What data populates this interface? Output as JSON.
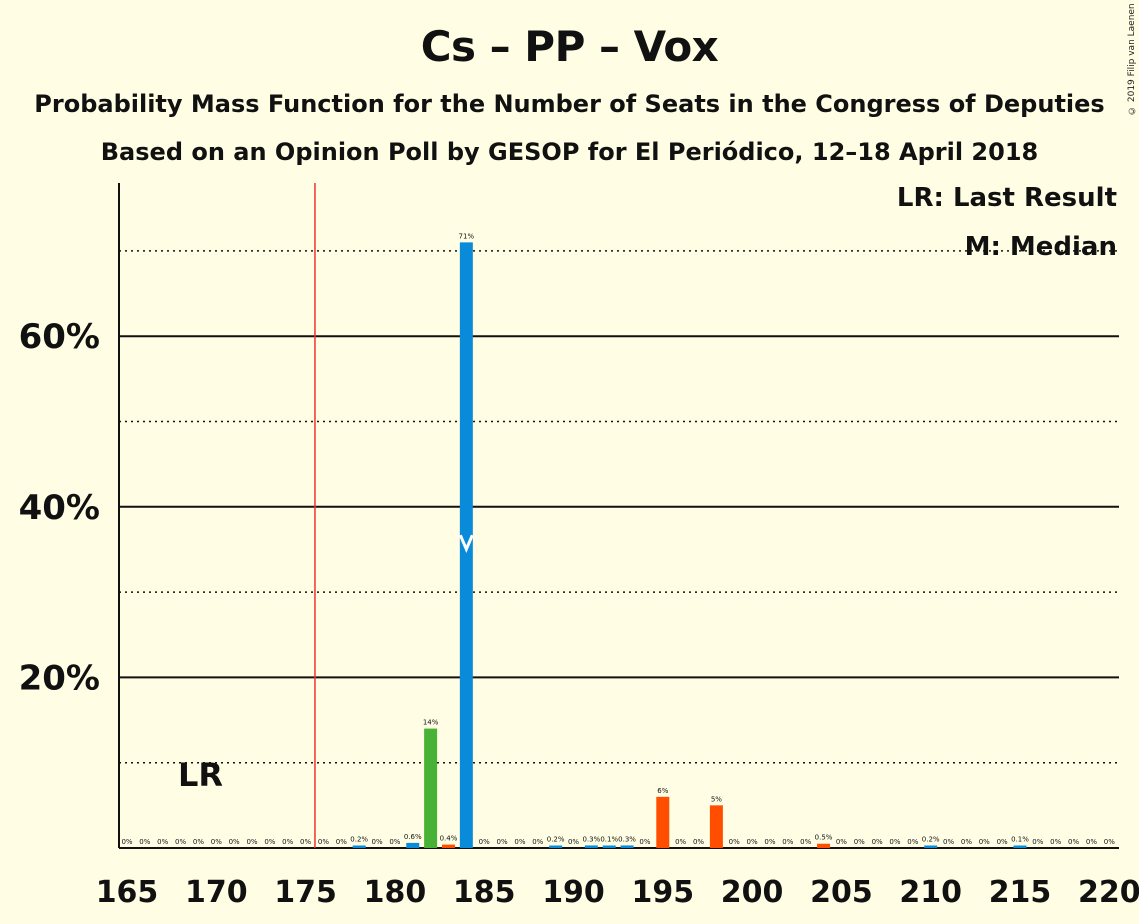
{
  "title": "Cs – PP – Vox",
  "subtitle1": "Probability Mass Function for the Number of Seats in the Congress of Deputies",
  "subtitle2": "Based on an Opinion Poll by GESOP for El Periódico, 12–18 April 2018",
  "copyright": "© 2019 Filip van Laenen",
  "legend": {
    "last_result": "LR: Last Result",
    "median": "M: Median"
  },
  "lr_label": "LR",
  "colors": {
    "background": "#FFFEE4",
    "bar_main": "#0A8BD9",
    "bar_green": "#48B236",
    "bar_orange": "#FF4E00",
    "majority_line": "#E33"
  },
  "chart_data": {
    "type": "bar",
    "xlim": [
      165,
      220
    ],
    "ylim": [
      0,
      78
    ],
    "x_ticks": [
      "165",
      "170",
      "175",
      "180",
      "185",
      "190",
      "195",
      "200",
      "205",
      "210",
      "215",
      "220"
    ],
    "y_ticks": [
      "20%",
      "40%",
      "60%"
    ],
    "solid_gridlines": [
      20,
      40,
      60
    ],
    "dotted_gridlines": [
      10,
      30,
      50,
      70
    ],
    "majority_line": 176,
    "last_result": 169,
    "median": 184,
    "bars": [
      {
        "x": 165,
        "value": 0,
        "label": "0%",
        "color": "blue"
      },
      {
        "x": 166,
        "value": 0,
        "label": "0%",
        "color": "blue"
      },
      {
        "x": 167,
        "value": 0,
        "label": "0%",
        "color": "blue"
      },
      {
        "x": 168,
        "value": 0,
        "label": "0%",
        "color": "blue"
      },
      {
        "x": 169,
        "value": 0,
        "label": "0%",
        "color": "blue"
      },
      {
        "x": 170,
        "value": 0,
        "label": "0%",
        "color": "blue"
      },
      {
        "x": 171,
        "value": 0,
        "label": "0%",
        "color": "blue"
      },
      {
        "x": 172,
        "value": 0,
        "label": "0%",
        "color": "blue"
      },
      {
        "x": 173,
        "value": 0,
        "label": "0%",
        "color": "blue"
      },
      {
        "x": 174,
        "value": 0,
        "label": "0%",
        "color": "blue"
      },
      {
        "x": 175,
        "value": 0,
        "label": "0%",
        "color": "blue"
      },
      {
        "x": 176,
        "value": 0,
        "label": "0%",
        "color": "blue"
      },
      {
        "x": 177,
        "value": 0,
        "label": "0%",
        "color": "blue"
      },
      {
        "x": 178,
        "value": 0.2,
        "label": "0.2%",
        "color": "blue"
      },
      {
        "x": 179,
        "value": 0,
        "label": "0%",
        "color": "blue"
      },
      {
        "x": 180,
        "value": 0,
        "label": "0%",
        "color": "blue"
      },
      {
        "x": 181,
        "value": 0.6,
        "label": "0.6%",
        "color": "blue"
      },
      {
        "x": 182,
        "value": 14,
        "label": "14%",
        "color": "green"
      },
      {
        "x": 183,
        "value": 0.4,
        "label": "0.4%",
        "color": "orange"
      },
      {
        "x": 184,
        "value": 71,
        "label": "71%",
        "color": "blue"
      },
      {
        "x": 185,
        "value": 0,
        "label": "0%",
        "color": "blue"
      },
      {
        "x": 186,
        "value": 0,
        "label": "0%",
        "color": "blue"
      },
      {
        "x": 187,
        "value": 0,
        "label": "0%",
        "color": "blue"
      },
      {
        "x": 188,
        "value": 0,
        "label": "0%",
        "color": "blue"
      },
      {
        "x": 189,
        "value": 0.2,
        "label": "0.2%",
        "color": "blue"
      },
      {
        "x": 190,
        "value": 0,
        "label": "0%",
        "color": "blue"
      },
      {
        "x": 191,
        "value": 0.3,
        "label": "0.3%",
        "color": "blue"
      },
      {
        "x": 192,
        "value": 0.1,
        "label": "0.1%",
        "color": "blue"
      },
      {
        "x": 193,
        "value": 0.3,
        "label": "0.3%",
        "color": "blue"
      },
      {
        "x": 194,
        "value": 0,
        "label": "0%",
        "color": "blue"
      },
      {
        "x": 195,
        "value": 6,
        "label": "6%",
        "color": "orange"
      },
      {
        "x": 196,
        "value": 0,
        "label": "0%",
        "color": "blue"
      },
      {
        "x": 197,
        "value": 0,
        "label": "0%",
        "color": "blue"
      },
      {
        "x": 198,
        "value": 5,
        "label": "5%",
        "color": "orange"
      },
      {
        "x": 199,
        "value": 0,
        "label": "0%",
        "color": "blue"
      },
      {
        "x": 200,
        "value": 0,
        "label": "0%",
        "color": "blue"
      },
      {
        "x": 201,
        "value": 0,
        "label": "0%",
        "color": "blue"
      },
      {
        "x": 202,
        "value": 0,
        "label": "0%",
        "color": "blue"
      },
      {
        "x": 203,
        "value": 0,
        "label": "0%",
        "color": "blue"
      },
      {
        "x": 204,
        "value": 0.5,
        "label": "0.5%",
        "color": "orange"
      },
      {
        "x": 205,
        "value": 0,
        "label": "0%",
        "color": "blue"
      },
      {
        "x": 206,
        "value": 0,
        "label": "0%",
        "color": "blue"
      },
      {
        "x": 207,
        "value": 0,
        "label": "0%",
        "color": "blue"
      },
      {
        "x": 208,
        "value": 0,
        "label": "0%",
        "color": "blue"
      },
      {
        "x": 209,
        "value": 0,
        "label": "0%",
        "color": "blue"
      },
      {
        "x": 210,
        "value": 0.2,
        "label": "0.2%",
        "color": "blue"
      },
      {
        "x": 211,
        "value": 0,
        "label": "0%",
        "color": "blue"
      },
      {
        "x": 212,
        "value": 0,
        "label": "0%",
        "color": "blue"
      },
      {
        "x": 213,
        "value": 0,
        "label": "0%",
        "color": "blue"
      },
      {
        "x": 214,
        "value": 0,
        "label": "0%",
        "color": "blue"
      },
      {
        "x": 215,
        "value": 0.1,
        "label": "0.1%",
        "color": "blue"
      },
      {
        "x": 216,
        "value": 0,
        "label": "0%",
        "color": "blue"
      },
      {
        "x": 217,
        "value": 0,
        "label": "0%",
        "color": "blue"
      },
      {
        "x": 218,
        "value": 0,
        "label": "0%",
        "color": "blue"
      },
      {
        "x": 219,
        "value": 0,
        "label": "0%",
        "color": "blue"
      },
      {
        "x": 220,
        "value": 0,
        "label": "0%",
        "color": "blue"
      }
    ]
  }
}
